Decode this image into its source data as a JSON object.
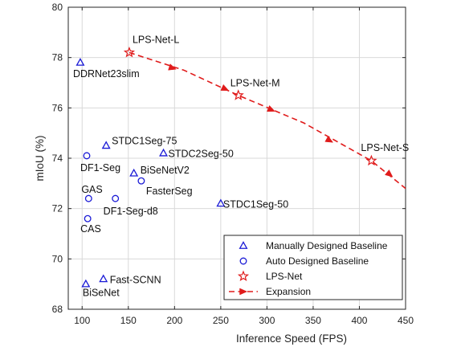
{
  "chart_data": {
    "type": "scatter",
    "xlabel": "Inference Speed (FPS)",
    "ylabel": "mIoU (%)",
    "xlim": [
      85,
      450
    ],
    "ylim": [
      68,
      80
    ],
    "xticks": [
      100,
      150,
      200,
      250,
      300,
      350,
      400,
      450
    ],
    "yticks": [
      68,
      70,
      72,
      74,
      76,
      78,
      80
    ],
    "grid": true,
    "legend_position": "bottom-right",
    "colors": {
      "manual": "#1a1ad6",
      "auto": "#1a1ad6",
      "lps": "#e01b1b",
      "expansion": "#e01b1b"
    },
    "series": [
      {
        "name": "Manually Designed Baseline",
        "marker": "triangle",
        "points": [
          {
            "label": "DDRNet23slim",
            "x": 98,
            "y": 77.8
          },
          {
            "label": "STDC1Seg-75",
            "x": 126,
            "y": 74.5
          },
          {
            "label": "STDC2Seg-50",
            "x": 188,
            "y": 74.2
          },
          {
            "label": "BiSeNetV2",
            "x": 156,
            "y": 73.4
          },
          {
            "label": "STDC1Seg-50",
            "x": 250,
            "y": 72.2
          },
          {
            "label": "Fast-SCNN",
            "x": 123,
            "y": 69.2
          },
          {
            "label": "BiSeNet",
            "x": 104,
            "y": 69.0
          }
        ]
      },
      {
        "name": "Auto Designed Baseline",
        "marker": "circle",
        "points": [
          {
            "label": "DF1-Seg",
            "x": 105,
            "y": 74.1
          },
          {
            "label": "FasterSeg",
            "x": 164,
            "y": 73.1
          },
          {
            "label": "GAS",
            "x": 107,
            "y": 72.4
          },
          {
            "label": "DF1-Seg-d8",
            "x": 136,
            "y": 72.4
          },
          {
            "label": "CAS",
            "x": 106,
            "y": 71.6
          }
        ]
      },
      {
        "name": "LPS-Net",
        "marker": "star",
        "points": [
          {
            "label": "LPS-Net-L",
            "x": 151,
            "y": 78.2
          },
          {
            "label": "LPS-Net-M",
            "x": 269,
            "y": 76.5
          },
          {
            "label": "LPS-Net-S",
            "x": 413,
            "y": 73.9
          }
        ]
      },
      {
        "name": "Expansion",
        "marker": "dashed-arrow",
        "points": [
          {
            "x": 151,
            "y": 78.2
          },
          {
            "x": 210,
            "y": 77.5
          },
          {
            "x": 269,
            "y": 76.5
          },
          {
            "x": 340,
            "y": 75.4
          },
          {
            "x": 413,
            "y": 73.9
          },
          {
            "x": 450,
            "y": 72.8
          }
        ],
        "arrows_at": [
          {
            "x": 198,
            "y": 77.58
          },
          {
            "x": 255,
            "y": 76.75
          },
          {
            "x": 305,
            "y": 75.92
          },
          {
            "x": 368,
            "y": 74.7
          },
          {
            "x": 433,
            "y": 73.35
          }
        ]
      }
    ]
  }
}
